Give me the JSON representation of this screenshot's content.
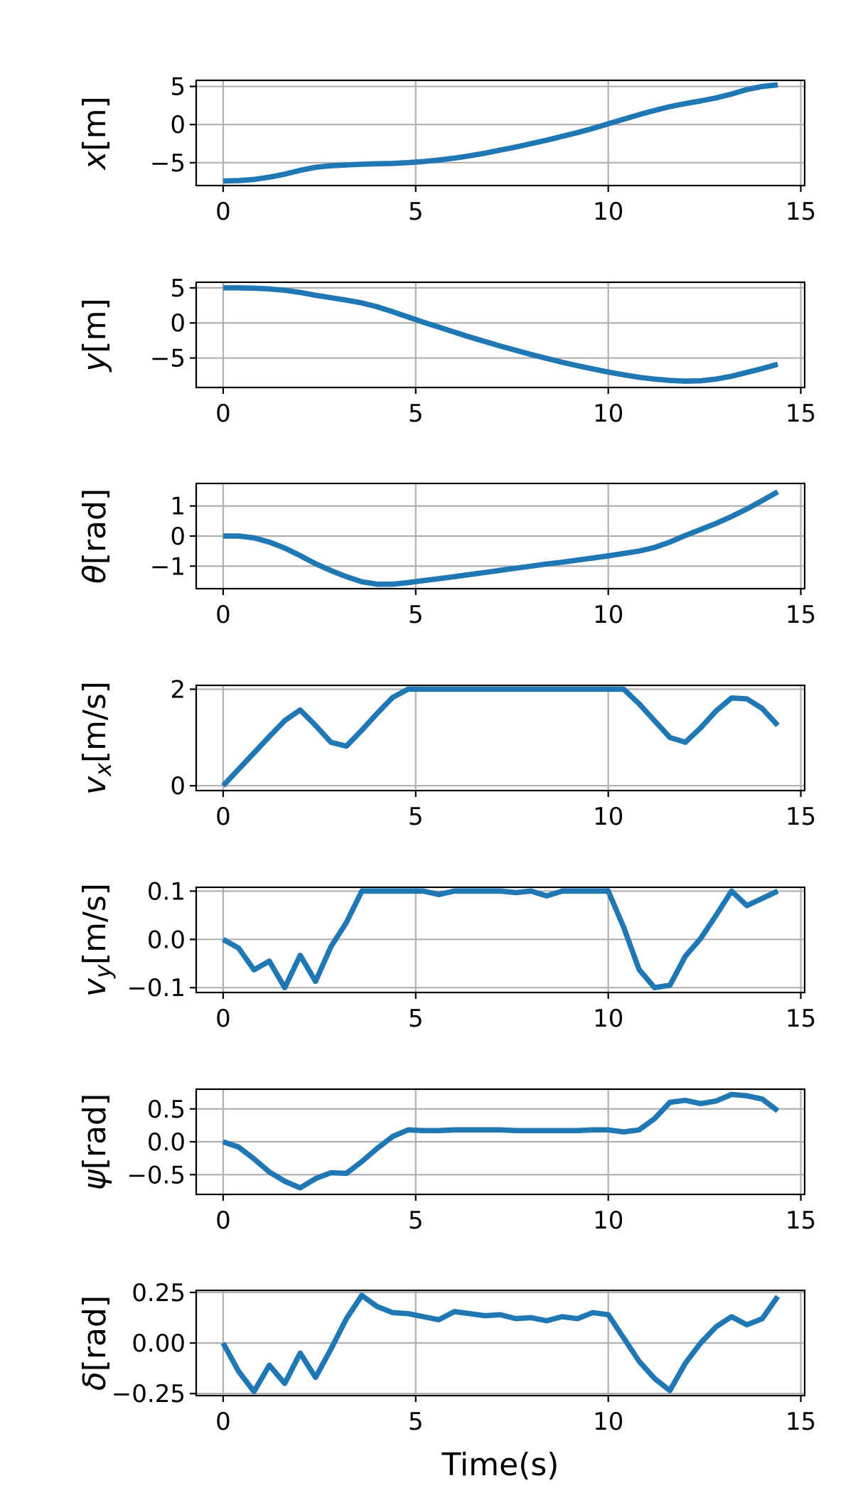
{
  "chart_data": [
    {
      "type": "line",
      "ylabel": "x[m]",
      "xlabel": "",
      "xlim": [
        -0.7,
        15.1
      ],
      "ylim": [
        -8.0,
        5.8
      ],
      "x_ticks": [
        "0",
        "5",
        "10",
        "15"
      ],
      "y_ticks": [
        {
          "v": 5,
          "label": "5"
        },
        {
          "v": 0,
          "label": "0"
        },
        {
          "v": -5,
          "label": "−5"
        }
      ],
      "grid": true,
      "color": "#1f77b4",
      "series": [
        {
          "x": [
            0,
            0.4,
            0.8,
            1.2,
            1.6,
            2.0,
            2.4,
            2.8,
            3.2,
            3.6,
            4.0,
            4.4,
            4.8,
            5.2,
            5.6,
            6.0,
            6.4,
            6.8,
            7.2,
            7.6,
            8.0,
            8.4,
            8.8,
            9.2,
            9.6,
            10.0,
            10.4,
            10.8,
            11.2,
            11.6,
            12.0,
            12.4,
            12.8,
            13.2,
            13.6,
            14.0,
            14.4
          ],
          "values": [
            -7.4,
            -7.35,
            -7.2,
            -6.9,
            -6.5,
            -6.0,
            -5.6,
            -5.4,
            -5.3,
            -5.2,
            -5.15,
            -5.1,
            -5.0,
            -4.85,
            -4.65,
            -4.4,
            -4.1,
            -3.75,
            -3.35,
            -2.95,
            -2.5,
            -2.05,
            -1.55,
            -1.05,
            -0.5,
            0.1,
            0.7,
            1.3,
            1.85,
            2.35,
            2.75,
            3.1,
            3.5,
            4.0,
            4.6,
            5.0,
            5.2
          ]
        }
      ]
    },
    {
      "type": "line",
      "ylabel": "y[m]",
      "xlabel": "",
      "xlim": [
        -0.7,
        15.1
      ],
      "ylim": [
        -9.2,
        5.8
      ],
      "x_ticks": [
        "0",
        "5",
        "10",
        "15"
      ],
      "y_ticks": [
        {
          "v": 5,
          "label": "5"
        },
        {
          "v": 0,
          "label": "0"
        },
        {
          "v": -5,
          "label": "−5"
        }
      ],
      "grid": true,
      "color": "#1f77b4",
      "series": [
        {
          "x": [
            0,
            0.4,
            0.8,
            1.2,
            1.6,
            2.0,
            2.4,
            2.8,
            3.2,
            3.6,
            4.0,
            4.4,
            4.8,
            5.2,
            5.6,
            6.0,
            6.4,
            6.8,
            7.2,
            7.6,
            8.0,
            8.4,
            8.8,
            9.2,
            9.6,
            10.0,
            10.4,
            10.8,
            11.2,
            11.6,
            12.0,
            12.4,
            12.8,
            13.2,
            13.6,
            14.0,
            14.4
          ],
          "values": [
            5.0,
            5.0,
            4.95,
            4.85,
            4.65,
            4.35,
            3.95,
            3.6,
            3.25,
            2.85,
            2.3,
            1.6,
            0.85,
            0.1,
            -0.6,
            -1.3,
            -2.0,
            -2.65,
            -3.3,
            -3.9,
            -4.5,
            -5.05,
            -5.6,
            -6.1,
            -6.55,
            -7.0,
            -7.4,
            -7.75,
            -8.0,
            -8.2,
            -8.3,
            -8.25,
            -8.0,
            -7.6,
            -7.05,
            -6.5,
            -5.9
          ]
        }
      ]
    },
    {
      "type": "line",
      "ylabel": "θ[rad]",
      "xlabel": "",
      "xlim": [
        -0.7,
        15.1
      ],
      "ylim": [
        -1.75,
        1.75
      ],
      "x_ticks": [
        "0",
        "5",
        "10",
        "15"
      ],
      "y_ticks": [
        {
          "v": 1,
          "label": "1"
        },
        {
          "v": 0,
          "label": "0"
        },
        {
          "v": -1,
          "label": "−1"
        }
      ],
      "grid": true,
      "color": "#1f77b4",
      "series": [
        {
          "x": [
            0,
            0.4,
            0.8,
            1.2,
            1.6,
            2.0,
            2.4,
            2.8,
            3.2,
            3.6,
            4.0,
            4.4,
            4.8,
            5.2,
            5.6,
            6.0,
            6.4,
            6.8,
            7.2,
            7.6,
            8.0,
            8.4,
            8.8,
            9.2,
            9.6,
            10.0,
            10.4,
            10.8,
            11.2,
            11.6,
            12.0,
            12.4,
            12.8,
            13.2,
            13.6,
            14.0,
            14.4
          ],
          "values": [
            0.0,
            0.0,
            -0.06,
            -0.2,
            -0.4,
            -0.65,
            -0.92,
            -1.15,
            -1.35,
            -1.52,
            -1.6,
            -1.6,
            -1.55,
            -1.48,
            -1.42,
            -1.35,
            -1.28,
            -1.21,
            -1.14,
            -1.07,
            -1.0,
            -0.93,
            -0.87,
            -0.8,
            -0.73,
            -0.66,
            -0.58,
            -0.5,
            -0.38,
            -0.2,
            0.02,
            0.22,
            0.42,
            0.65,
            0.9,
            1.18,
            1.47
          ]
        }
      ]
    },
    {
      "type": "line",
      "ylabel": "v_x[m/s]",
      "xlabel": "",
      "xlim": [
        -0.7,
        15.1
      ],
      "ylim": [
        -0.1,
        2.08
      ],
      "x_ticks": [
        "0",
        "5",
        "10",
        "15"
      ],
      "y_ticks": [
        {
          "v": 2,
          "label": "2"
        },
        {
          "v": 0,
          "label": "0"
        }
      ],
      "grid": true,
      "color": "#1f77b4",
      "series": [
        {
          "x": [
            0,
            0.4,
            0.8,
            1.2,
            1.6,
            2.0,
            2.4,
            2.8,
            3.2,
            3.6,
            4.0,
            4.4,
            4.8,
            5.2,
            5.6,
            6.0,
            6.4,
            6.8,
            7.2,
            7.6,
            8.0,
            8.4,
            8.8,
            9.2,
            9.6,
            10.0,
            10.4,
            10.8,
            11.2,
            11.6,
            12.0,
            12.4,
            12.8,
            13.2,
            13.6,
            14.0,
            14.4
          ],
          "values": [
            0.0,
            0.34,
            0.68,
            1.02,
            1.35,
            1.57,
            1.25,
            0.9,
            0.82,
            1.15,
            1.5,
            1.83,
            2.0,
            2.0,
            2.0,
            2.0,
            2.0,
            2.0,
            2.0,
            2.0,
            2.0,
            2.0,
            2.0,
            2.0,
            2.0,
            2.0,
            2.0,
            1.7,
            1.35,
            1.0,
            0.9,
            1.2,
            1.55,
            1.82,
            1.8,
            1.6,
            1.25
          ]
        }
      ]
    },
    {
      "type": "line",
      "ylabel": "v_y[m/s]",
      "xlabel": "",
      "xlim": [
        -0.7,
        15.1
      ],
      "ylim": [
        -0.11,
        0.108
      ],
      "x_ticks": [
        "0",
        "5",
        "10",
        "15"
      ],
      "y_ticks": [
        {
          "v": 0.1,
          "label": "0.1"
        },
        {
          "v": 0,
          "label": "0.0"
        },
        {
          "v": -0.1,
          "label": "−0.1"
        }
      ],
      "grid": true,
      "color": "#1f77b4",
      "series": [
        {
          "x": [
            0,
            0.4,
            0.8,
            1.2,
            1.6,
            2.0,
            2.4,
            2.8,
            3.2,
            3.6,
            4.0,
            4.4,
            4.8,
            5.2,
            5.6,
            6.0,
            6.4,
            6.8,
            7.2,
            7.6,
            8.0,
            8.4,
            8.8,
            9.2,
            9.6,
            10.0,
            10.4,
            10.8,
            11.2,
            11.6,
            12.0,
            12.4,
            12.8,
            13.2,
            13.6,
            14.0,
            14.4
          ],
          "values": [
            0.0,
            -0.018,
            -0.063,
            -0.045,
            -0.1,
            -0.033,
            -0.087,
            -0.015,
            0.035,
            0.1,
            0.1,
            0.1,
            0.1,
            0.1,
            0.093,
            0.1,
            0.1,
            0.1,
            0.1,
            0.097,
            0.1,
            0.09,
            0.1,
            0.1,
            0.1,
            0.1,
            0.025,
            -0.062,
            -0.1,
            -0.095,
            -0.035,
            0.002,
            0.05,
            0.1,
            0.07,
            0.085,
            0.1
          ]
        }
      ]
    },
    {
      "type": "line",
      "ylabel": "ψ[rad]",
      "xlabel": "",
      "xlim": [
        -0.7,
        15.1
      ],
      "ylim": [
        -0.8,
        0.8
      ],
      "x_ticks": [
        "0",
        "5",
        "10",
        "15"
      ],
      "y_ticks": [
        {
          "v": 0.5,
          "label": "0.5"
        },
        {
          "v": 0,
          "label": "0.0"
        },
        {
          "v": -0.5,
          "label": "−0.5"
        }
      ],
      "grid": true,
      "color": "#1f77b4",
      "series": [
        {
          "x": [
            0,
            0.4,
            0.8,
            1.2,
            1.6,
            2.0,
            2.4,
            2.8,
            3.2,
            3.6,
            4.0,
            4.4,
            4.8,
            5.2,
            5.6,
            6.0,
            6.4,
            6.8,
            7.2,
            7.6,
            8.0,
            8.4,
            8.8,
            9.2,
            9.6,
            10.0,
            10.4,
            10.8,
            11.2,
            11.6,
            12.0,
            12.4,
            12.8,
            13.2,
            13.6,
            14.0,
            14.4
          ],
          "values": [
            0.0,
            -0.08,
            -0.26,
            -0.46,
            -0.6,
            -0.7,
            -0.56,
            -0.47,
            -0.48,
            -0.3,
            -0.1,
            0.08,
            0.18,
            0.17,
            0.17,
            0.18,
            0.18,
            0.18,
            0.18,
            0.17,
            0.17,
            0.17,
            0.17,
            0.17,
            0.18,
            0.18,
            0.15,
            0.18,
            0.35,
            0.6,
            0.63,
            0.58,
            0.62,
            0.72,
            0.7,
            0.65,
            0.47
          ]
        }
      ]
    },
    {
      "type": "line",
      "ylabel": "δ[rad]",
      "xlabel": "Time(s)",
      "xlim": [
        -0.7,
        15.1
      ],
      "ylim": [
        -0.26,
        0.26
      ],
      "x_ticks": [
        "0",
        "5",
        "10",
        "15"
      ],
      "y_ticks": [
        {
          "v": 0.25,
          "label": "0.25"
        },
        {
          "v": 0,
          "label": "0.00"
        },
        {
          "v": -0.25,
          "label": "−0.25"
        }
      ],
      "grid": true,
      "color": "#1f77b4",
      "series": [
        {
          "x": [
            0,
            0.4,
            0.8,
            1.2,
            1.6,
            2.0,
            2.4,
            2.8,
            3.2,
            3.6,
            4.0,
            4.4,
            4.8,
            5.2,
            5.6,
            6.0,
            6.4,
            6.8,
            7.2,
            7.6,
            8.0,
            8.4,
            8.8,
            9.2,
            9.6,
            10.0,
            10.4,
            10.8,
            11.2,
            11.6,
            12.0,
            12.4,
            12.8,
            13.2,
            13.6,
            14.0,
            14.4
          ],
          "values": [
            0.0,
            -0.14,
            -0.24,
            -0.11,
            -0.2,
            -0.05,
            -0.17,
            -0.03,
            0.12,
            0.235,
            0.18,
            0.15,
            0.145,
            0.13,
            0.115,
            0.155,
            0.145,
            0.135,
            0.14,
            0.12,
            0.125,
            0.11,
            0.13,
            0.12,
            0.15,
            0.14,
            0.025,
            -0.09,
            -0.175,
            -0.235,
            -0.1,
            0.0,
            0.08,
            0.13,
            0.09,
            0.12,
            0.23
          ]
        }
      ]
    }
  ]
}
